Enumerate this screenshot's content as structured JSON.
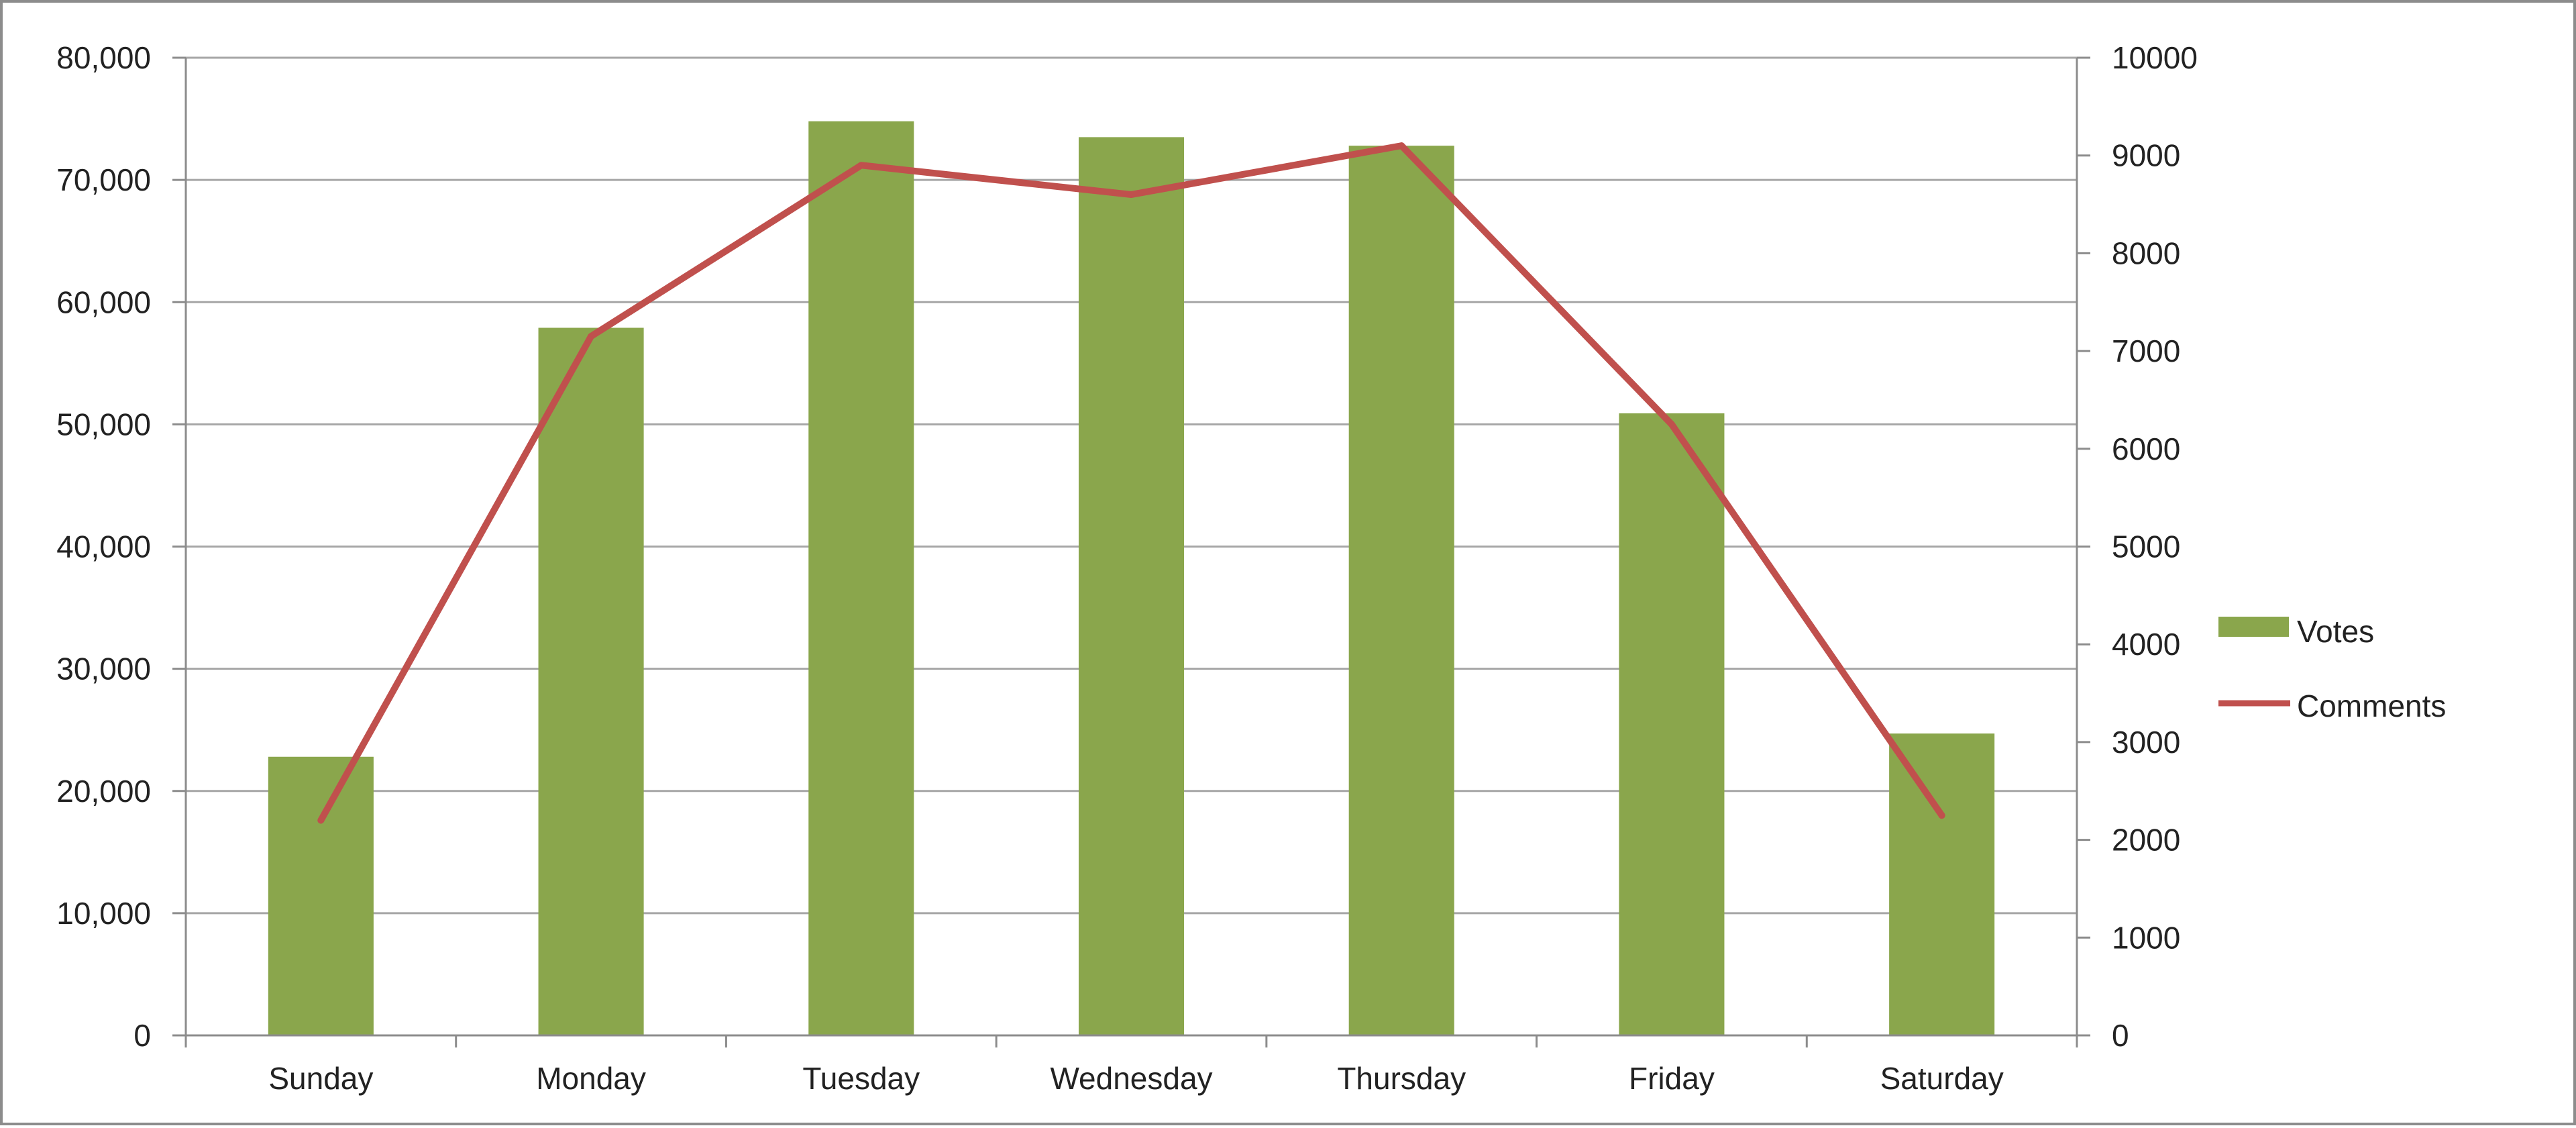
{
  "chart_data": {
    "type": "bar",
    "categories": [
      "Sunday",
      "Monday",
      "Tuesday",
      "Wednesday",
      "Thursday",
      "Friday",
      "Saturday"
    ],
    "series": [
      {
        "name": "Votes",
        "type": "bar",
        "axis": "left",
        "color": "#8aa64c",
        "values": [
          22800,
          57900,
          74800,
          73500,
          72800,
          50900,
          24700
        ]
      },
      {
        "name": "Comments",
        "type": "line",
        "axis": "right",
        "color": "#c0504d",
        "values": [
          2200,
          7150,
          8900,
          8600,
          9100,
          6250,
          2250
        ]
      }
    ],
    "y_left": {
      "range": [
        0,
        80000
      ],
      "ticks": [
        0,
        10000,
        20000,
        30000,
        40000,
        50000,
        60000,
        70000,
        80000
      ],
      "tick_labels": [
        "0",
        "10,000",
        "20,000",
        "30,000",
        "40,000",
        "50,000",
        "60,000",
        "70,000",
        "80,000"
      ]
    },
    "y_right": {
      "range": [
        0,
        10000
      ],
      "ticks": [
        0,
        1000,
        2000,
        3000,
        4000,
        5000,
        6000,
        7000,
        8000,
        9000,
        10000
      ],
      "tick_labels": [
        "0",
        "1000",
        "2000",
        "3000",
        "4000",
        "5000",
        "6000",
        "7000",
        "8000",
        "9000",
        "10000"
      ]
    },
    "title": "",
    "xlabel": "",
    "ylabel": "",
    "grid": true,
    "legend_position": "right",
    "colors": {
      "gridline": "#a6a6a6",
      "axis": "#8c8c8c",
      "border": "#8c8c8c"
    }
  }
}
